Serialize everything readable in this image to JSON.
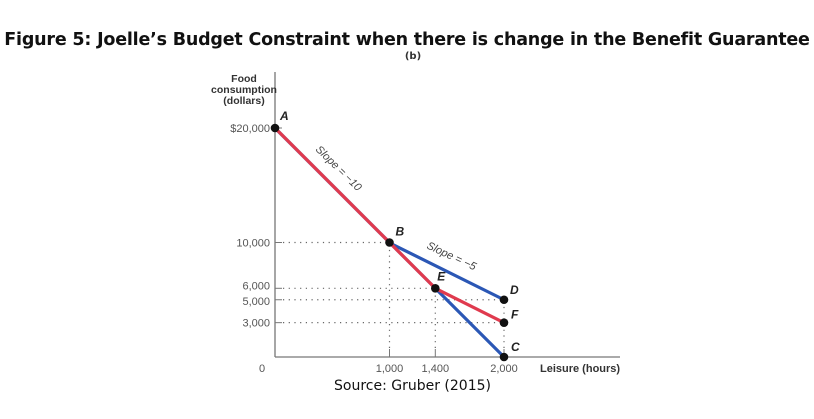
{
  "figure": {
    "title": "Figure 5: Joelle’s Budget Constraint when there is change in the Benefit Guarantee",
    "panel": "(b)",
    "source": "Source: Gruber (2015)"
  },
  "chart_data": {
    "type": "line",
    "title": "Figure 5: Joelle’s Budget Constraint when there is change in the Benefit Guarantee",
    "subtitle": "(b)",
    "xlabel": "Leisure (hours)",
    "ylabel": [
      "Food",
      "consumption",
      "(dollars)"
    ],
    "xlim": [
      0,
      2000
    ],
    "ylim": [
      0,
      20000
    ],
    "x_ticks": [
      {
        "value": 1000,
        "label": "1,000"
      },
      {
        "value": 1400,
        "label": "1,400"
      },
      {
        "value": 2000,
        "label": "2,000"
      }
    ],
    "y_ticks": [
      {
        "value": 20000,
        "label": "$20,000"
      },
      {
        "value": 10000,
        "label": "10,000"
      },
      {
        "value": 6000,
        "label": "6,000"
      },
      {
        "value": 5000,
        "label": "5,000"
      },
      {
        "value": 3000,
        "label": "3,000"
      }
    ],
    "origin_label": "0",
    "grid": "dotted guide lines at labeled ticks",
    "series": [
      {
        "name": "original constraint (A-B-D)",
        "color": "#2b57b5",
        "points": [
          [
            0,
            20000
          ],
          [
            1000,
            10000
          ],
          [
            2000,
            5000
          ]
        ]
      },
      {
        "name": "no-benefit constraint (A-C)",
        "color": "#2b57b5",
        "points": [
          [
            0,
            20000
          ],
          [
            2000,
            0
          ]
        ]
      },
      {
        "name": "new constraint (A-B-E-F)",
        "color": "#e03a4e",
        "points": [
          [
            0,
            20000
          ],
          [
            1000,
            10000
          ],
          [
            1400,
            6000
          ],
          [
            2000,
            3000
          ]
        ]
      }
    ],
    "points": [
      {
        "label": "A",
        "x": 0,
        "y": 20000
      },
      {
        "label": "B",
        "x": 1000,
        "y": 10000
      },
      {
        "label": "E",
        "x": 1400,
        "y": 6000
      },
      {
        "label": "D",
        "x": 2000,
        "y": 5000
      },
      {
        "label": "F",
        "x": 2000,
        "y": 3000
      },
      {
        "label": "C",
        "x": 2000,
        "y": 0
      }
    ],
    "annotations": [
      {
        "text": "Slope = −10",
        "segment": "A-B"
      },
      {
        "text": "Slope = −5",
        "segment": "B-D"
      }
    ]
  }
}
